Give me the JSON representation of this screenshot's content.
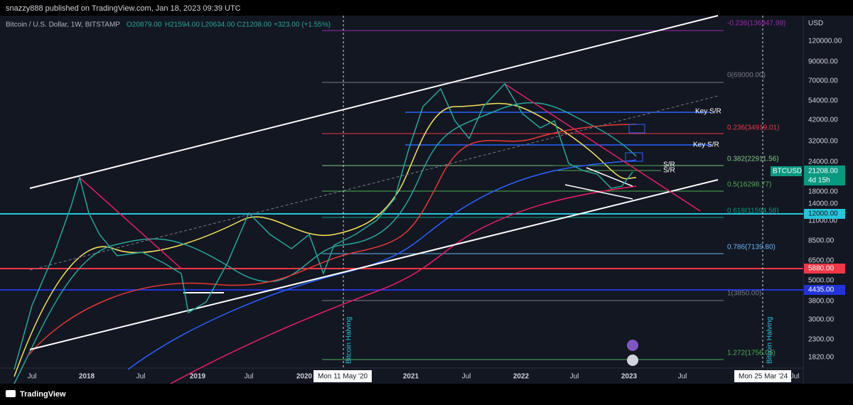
{
  "header": {
    "published": "snazzy888 published on TradingView.com, Jan 18, 2023 09:39 UTC"
  },
  "legend": {
    "symbol": "Bitcoin / U.S. Dollar, 1W, BITSTAMP",
    "open": "O20879.00",
    "high": "H21594.00",
    "low": "L20634.00",
    "close": "C21208.00",
    "change": "+323.00 (+1.55%)"
  },
  "fib_labels": [
    "-0.236(136947.99)",
    "0(69000.00)",
    "0.236(34919.01)",
    "0.382(22911.56)",
    "0.5(16298.77)",
    "0.618(11594.58)",
    "0.786(7139.80)",
    "1(3850.00)",
    "1.272(1756.06)"
  ],
  "annotations": [
    "Key S/R",
    "Key S/R",
    "S/R",
    "S/R",
    "Bitcoin Halving",
    "Bitcoin Halving"
  ],
  "price_axis": {
    "currency": "USD",
    "labels": [
      "120000.00",
      "90000.00",
      "70000.00",
      "54000.00",
      "42000.00",
      "32000.00",
      "24000.00",
      "18000.00",
      "14000.00",
      "11000.00",
      "8500.00",
      "6500.00",
      "5000.00",
      "3800.00",
      "3000.00",
      "2300.00",
      "1820.00"
    ]
  },
  "badges": {
    "symbol": "BTCUSD",
    "last_price": "21208.00",
    "countdown": "4d 15h",
    "level_cyan": "12000.00",
    "level_red": "5880.00",
    "level_blue": "4435.00"
  },
  "time_axis": {
    "labels": [
      "Jul",
      "2018",
      "Jul",
      "2019",
      "Jul",
      "2020",
      "2021",
      "Jul",
      "2022",
      "Jul",
      "2023",
      "Jul",
      "Jul"
    ],
    "cursor_left": "Mon 11 May '20",
    "cursor_right": "Mon 25 Mar '24"
  },
  "footer": {
    "brand": "TradingView"
  }
}
